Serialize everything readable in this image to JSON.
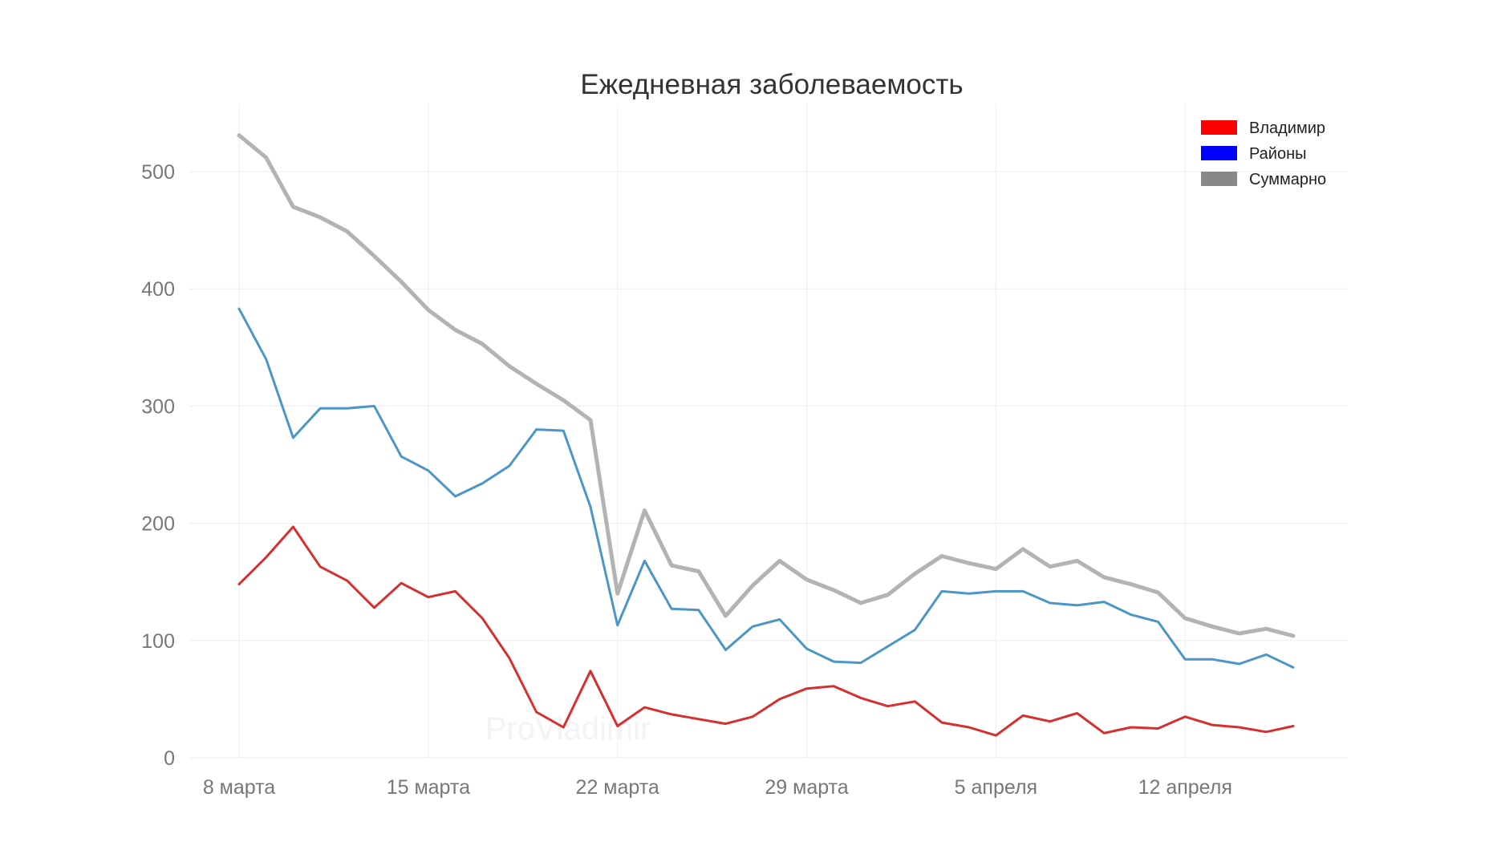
{
  "chart_data": {
    "type": "line",
    "title": "Ежедневная заболеваемость",
    "xlabel": "",
    "ylabel": "",
    "ylim": [
      0,
      550
    ],
    "yticks": [
      0,
      100,
      200,
      300,
      400,
      500
    ],
    "xticks": [
      {
        "index": 0,
        "label": "8 марта"
      },
      {
        "index": 7,
        "label": "15 марта"
      },
      {
        "index": 14,
        "label": "22 марта"
      },
      {
        "index": 21,
        "label": "29 марта"
      },
      {
        "index": 28,
        "label": "5 апреля"
      },
      {
        "index": 35,
        "label": "12 апреля"
      }
    ],
    "grid": true,
    "legend_position": "top-right",
    "x": [
      "8 марта",
      "9 марта",
      "10 марта",
      "11 марта",
      "12 марта",
      "13 марта",
      "14 марта",
      "15 марта",
      "16 марта",
      "17 марта",
      "18 марта",
      "19 марта",
      "20 марта",
      "21 марта",
      "22 марта",
      "23 марта",
      "24 марта",
      "25 марта",
      "26 марта",
      "27 марта",
      "28 марта",
      "29 марта",
      "30 марта",
      "31 марта",
      "1 апреля",
      "2 апреля",
      "3 апреля",
      "4 апреля",
      "5 апреля",
      "6 апреля",
      "7 апреля",
      "8 апреля",
      "9 апреля",
      "10 апреля",
      "11 апреля",
      "12 апреля",
      "13 апреля",
      "14 апреля",
      "15 апреля",
      "16 апреля"
    ],
    "series": [
      {
        "name": "Суммарно",
        "color": "#b3b3b3",
        "legend_color": "#888888",
        "values": [
          531,
          512,
          470,
          461,
          449,
          428,
          406,
          382,
          365,
          353,
          334,
          319,
          305,
          288,
          140,
          211,
          164,
          159,
          121,
          147,
          168,
          152,
          143,
          132,
          139,
          157,
          172,
          166,
          161,
          178,
          163,
          168,
          154,
          148,
          141,
          119,
          112,
          106,
          110,
          104
        ]
      },
      {
        "name": "Районы",
        "color": "#4b96c6",
        "legend_color": "#0000ff",
        "values": [
          383,
          340,
          273,
          298,
          298,
          300,
          257,
          245,
          223,
          234,
          249,
          280,
          279,
          214,
          113,
          168,
          127,
          126,
          92,
          112,
          118,
          93,
          82,
          81,
          95,
          109,
          142,
          140,
          142,
          142,
          132,
          130,
          133,
          122,
          116,
          84,
          84,
          80,
          88,
          77
        ]
      },
      {
        "name": "Владимир",
        "color": "#d62f2f",
        "legend_color": "#ff0000",
        "values": [
          148,
          171,
          197,
          163,
          151,
          128,
          149,
          137,
          142,
          119,
          85,
          39,
          26,
          74,
          27,
          43,
          37,
          33,
          29,
          35,
          50,
          59,
          61,
          51,
          44,
          48,
          30,
          26,
          19,
          36,
          31,
          38,
          21,
          26,
          25,
          35,
          28,
          26,
          22,
          27
        ]
      }
    ],
    "legend": [
      "Владимир",
      "Районы",
      "Суммарно"
    ],
    "watermark": "ProVladimir"
  }
}
